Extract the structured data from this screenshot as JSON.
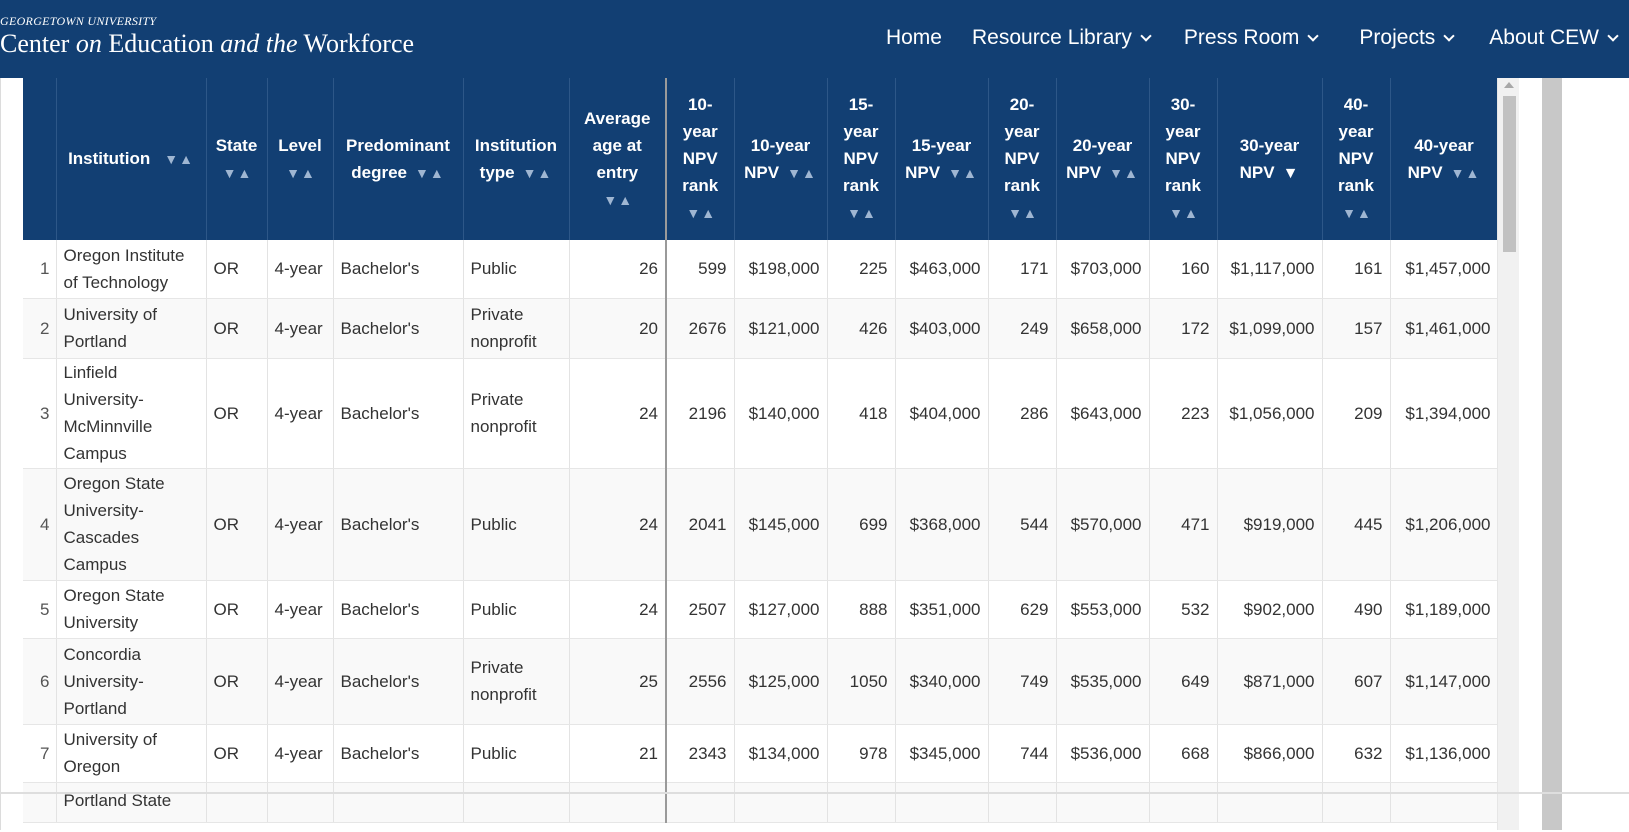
{
  "header": {
    "logo_top": "GEORGETOWN UNIVERSITY",
    "logo_parts": [
      "Center",
      "on",
      "Education",
      "and the",
      "Workforce"
    ],
    "nav": [
      {
        "label": "Home",
        "dropdown": false
      },
      {
        "label": "Resource Library",
        "dropdown": true
      },
      {
        "label": "Press Room",
        "dropdown": true
      },
      {
        "label": "Projects",
        "dropdown": true
      },
      {
        "label": "About CEW",
        "dropdown": true
      }
    ]
  },
  "colors": {
    "header_bg": "#123f73",
    "sort_arrow": "#9fb6d2"
  },
  "table": {
    "sort_unsorted": "▼▲",
    "sort_active": "▼",
    "columns": [
      {
        "key": "idx",
        "label": ""
      },
      {
        "key": "institution",
        "label": "Institution"
      },
      {
        "key": "state",
        "label": "State"
      },
      {
        "key": "level",
        "label": "Level"
      },
      {
        "key": "degree",
        "label": "Predominant degree"
      },
      {
        "key": "type",
        "label": "Institution type"
      },
      {
        "key": "age",
        "label": "Average age at entry"
      },
      {
        "key": "r10",
        "label": "10-year NPV rank"
      },
      {
        "key": "n10",
        "label": "10-year NPV"
      },
      {
        "key": "r15",
        "label": "15-year NPV rank"
      },
      {
        "key": "n15",
        "label": "15-year NPV"
      },
      {
        "key": "r20",
        "label": "20-year NPV rank"
      },
      {
        "key": "n20",
        "label": "20-year NPV"
      },
      {
        "key": "r30",
        "label": "30-year NPV rank"
      },
      {
        "key": "n30",
        "label": "30-year NPV"
      },
      {
        "key": "r40",
        "label": "40-year NPV rank"
      },
      {
        "key": "n40",
        "label": "40-year NPV"
      }
    ],
    "rows": [
      {
        "idx": "1",
        "institution": "Oregon Institute of Technology",
        "state": "OR",
        "level": "4-year",
        "degree": "Bachelor's",
        "type": "Public",
        "age": "26",
        "r10": "599",
        "n10": "$198,000",
        "r15": "225",
        "n15": "$463,000",
        "r20": "171",
        "n20": "$703,000",
        "r30": "160",
        "n30": "$1,117,000",
        "r40": "161",
        "n40": "$1,457,000"
      },
      {
        "idx": "2",
        "institution": "University of Portland",
        "state": "OR",
        "level": "4-year",
        "degree": "Bachelor's",
        "type": "Private nonprofit",
        "age": "20",
        "r10": "2676",
        "n10": "$121,000",
        "r15": "426",
        "n15": "$403,000",
        "r20": "249",
        "n20": "$658,000",
        "r30": "172",
        "n30": "$1,099,000",
        "r40": "157",
        "n40": "$1,461,000"
      },
      {
        "idx": "3",
        "institution": "Linfield University-McMinnville Campus",
        "state": "OR",
        "level": "4-year",
        "degree": "Bachelor's",
        "type": "Private nonprofit",
        "age": "24",
        "r10": "2196",
        "n10": "$140,000",
        "r15": "418",
        "n15": "$404,000",
        "r20": "286",
        "n20": "$643,000",
        "r30": "223",
        "n30": "$1,056,000",
        "r40": "209",
        "n40": "$1,394,000"
      },
      {
        "idx": "4",
        "institution": "Oregon State University-Cascades Campus",
        "state": "OR",
        "level": "4-year",
        "degree": "Bachelor's",
        "type": "Public",
        "age": "24",
        "r10": "2041",
        "n10": "$145,000",
        "r15": "699",
        "n15": "$368,000",
        "r20": "544",
        "n20": "$570,000",
        "r30": "471",
        "n30": "$919,000",
        "r40": "445",
        "n40": "$1,206,000"
      },
      {
        "idx": "5",
        "institution": "Oregon State University",
        "state": "OR",
        "level": "4-year",
        "degree": "Bachelor's",
        "type": "Public",
        "age": "24",
        "r10": "2507",
        "n10": "$127,000",
        "r15": "888",
        "n15": "$351,000",
        "r20": "629",
        "n20": "$553,000",
        "r30": "532",
        "n30": "$902,000",
        "r40": "490",
        "n40": "$1,189,000"
      },
      {
        "idx": "6",
        "institution": "Concordia University-Portland",
        "state": "OR",
        "level": "4-year",
        "degree": "Bachelor's",
        "type": "Private nonprofit",
        "age": "25",
        "r10": "2556",
        "n10": "$125,000",
        "r15": "1050",
        "n15": "$340,000",
        "r20": "749",
        "n20": "$535,000",
        "r30": "649",
        "n30": "$871,000",
        "r40": "607",
        "n40": "$1,147,000"
      },
      {
        "idx": "7",
        "institution": "University of Oregon",
        "state": "OR",
        "level": "4-year",
        "degree": "Bachelor's",
        "type": "Public",
        "age": "21",
        "r10": "2343",
        "n10": "$134,000",
        "r15": "978",
        "n15": "$345,000",
        "r20": "744",
        "n20": "$536,000",
        "r30": "668",
        "n30": "$866,000",
        "r40": "632",
        "n40": "$1,136,000"
      },
      {
        "idx": "",
        "institution": "Portland State",
        "state": "",
        "level": "",
        "degree": "",
        "type": "",
        "age": "",
        "r10": "",
        "n10": "",
        "r15": "",
        "n15": "",
        "r20": "",
        "n20": "",
        "r30": "",
        "n30": "",
        "r40": "",
        "n40": ""
      }
    ]
  }
}
